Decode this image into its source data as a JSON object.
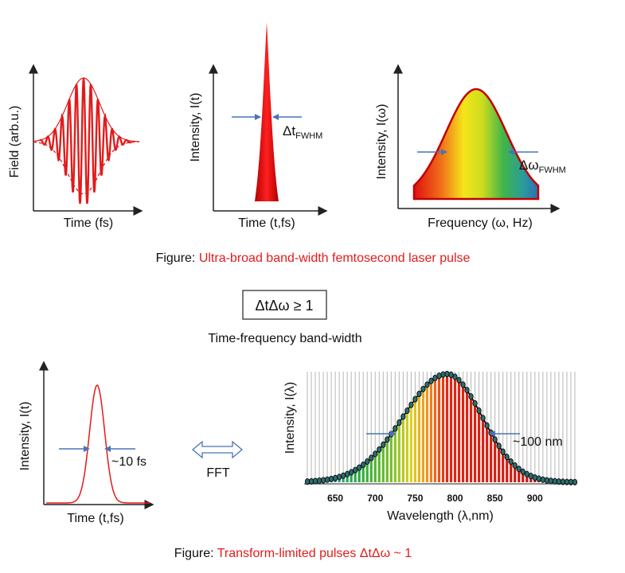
{
  "panel1": {
    "y_label": "Field (arb.u.)",
    "x_label": "Time (fs)"
  },
  "panel2": {
    "y_label": "Intensity, I(t)",
    "x_label": "Time (t,fs)",
    "width_label": "Δt",
    "width_sub": "FWHM"
  },
  "panel3": {
    "y_label": "Intensity, I(ω)",
    "x_label": "Frequency (ω, Hz)",
    "width_label": "Δω",
    "width_sub": "FWHM"
  },
  "caption1": {
    "prefix": "Figure: ",
    "text": "Ultra-broad band-width femtosecond laser pulse"
  },
  "relation": {
    "formula": "ΔtΔω ≥ 1",
    "label": "Time-frequency band-width"
  },
  "panel4": {
    "y_label": "Intensity, I(t)",
    "x_label": "Time (t,fs)",
    "width_label": "~10 fs"
  },
  "fft_label": "FFT",
  "panel5": {
    "y_label": "Intensity, I(λ)",
    "x_label": "Wavelength (λ,nm)",
    "width_label": "~100 nm",
    "ticks": [
      "650",
      "700",
      "750",
      "800",
      "850",
      "900"
    ]
  },
  "caption2": {
    "prefix": "Figure: ",
    "text": "Transform-limited pulses ΔtΔω ~ 1"
  },
  "colors": {
    "accent": "#e21b1b",
    "arrow": "#4a74b4",
    "axis": "#222222"
  },
  "chart_data": [
    {
      "type": "line",
      "title": "",
      "xlabel": "Time (fs)",
      "ylabel": "Field (arb.u.)",
      "series": [
        {
          "name": "field",
          "shape": "gaussian-modulated oscillation"
        },
        {
          "name": "envelope",
          "shape": "gaussian"
        }
      ]
    },
    {
      "type": "area",
      "title": "",
      "xlabel": "Time (t,fs)",
      "ylabel": "Intensity, I(t)",
      "series": [
        {
          "name": "intensity",
          "shape": "narrow peak"
        }
      ]
    },
    {
      "type": "area",
      "title": "",
      "xlabel": "Frequency (ω, Hz)",
      "ylabel": "Intensity, I(ω)",
      "series": [
        {
          "name": "spectrum",
          "shape": "gaussian"
        }
      ]
    },
    {
      "type": "line",
      "title": "",
      "xlabel": "Time (t,fs)",
      "ylabel": "Intensity, I(t)",
      "series": [
        {
          "name": "pulse",
          "shape": "gaussian",
          "fwhm_fs": 10
        }
      ]
    },
    {
      "type": "bar",
      "title": "",
      "xlabel": "Wavelength (λ,nm)",
      "ylabel": "Intensity, I(λ)",
      "xlim": [
        615,
        950
      ],
      "peak_nm": 790,
      "fwhm_nm": 100,
      "ticks": [
        650,
        700,
        750,
        800,
        850,
        900
      ]
    }
  ]
}
